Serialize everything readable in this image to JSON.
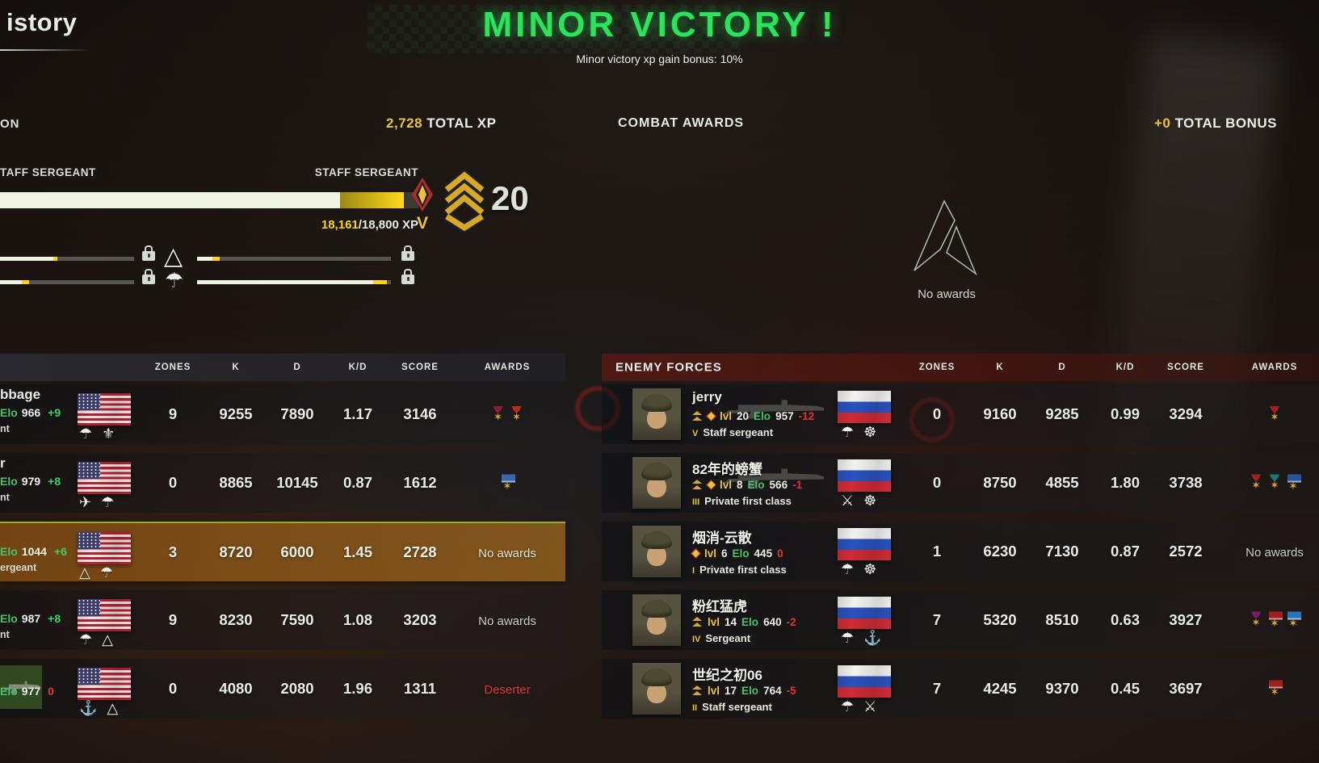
{
  "header": {
    "history_title_fragment": "istory",
    "victory_title": "MINOR VICTORY !",
    "victory_subtitle": "Minor victory xp gain bonus: 10%",
    "victory_color": "#2ce35c"
  },
  "sections": {
    "progression_label_fragment": "ON",
    "total_xp_value": "2,728",
    "total_xp_label": " TOTAL XP",
    "combat_awards_title": "COMBAT AWARDS",
    "total_bonus_value": "+0",
    "total_bonus_label": " TOTAL BONUS"
  },
  "progression": {
    "current_rank_fragment": "TAFF SERGEANT",
    "next_rank": "STAFF SERGEANT",
    "xp_current": "18,161",
    "xp_remaining": "/18,800 XP",
    "level": "20",
    "prestige_numeral": "V",
    "bar_base_pct": 81.3,
    "bar_gain_pct": 15.3
  },
  "unlocks": {
    "badge1": "△",
    "badge2": "☂",
    "row1": {
      "left_fill": 40,
      "left_gain": 2.5,
      "right_fill": 8,
      "right_gain": 3.5
    },
    "row2": {
      "left_fill": 16.5,
      "left_gain": 5,
      "right_fill": 91,
      "right_gain": 7
    }
  },
  "combat_awards": {
    "empty_label": "No awards"
  },
  "scoreboard": {
    "columns": [
      "ZONES",
      "K",
      "D",
      "K/D",
      "SCORE",
      "AWARDS"
    ],
    "enemy_title": "ENEMY FORCES",
    "lvl_label": "lvl",
    "elo_label": "Elo",
    "medal_glyph": "✶",
    "friendly_rows": [
      {
        "name_fragment": "bbage",
        "elo": "966",
        "delta": "+9",
        "delta_color": "#3ad166",
        "rank_fragment": "nt",
        "zones": "9",
        "k": "9255",
        "d": "7890",
        "kd": "1.17",
        "score": "3146",
        "medals": [
          {
            "c": "#8c1a3a"
          },
          {
            "c": "#b03020"
          }
        ],
        "badges": [
          "☂",
          "⚜"
        ]
      },
      {
        "name_fragment": "r",
        "elo": "979",
        "delta": "+8",
        "delta_color": "#3ad166",
        "rank_fragment": "nt",
        "zones": "0",
        "k": "8865",
        "d": "10145",
        "kd": "0.87",
        "score": "1612",
        "medals": [
          {
            "c": "#3a66b0",
            "t": "bar"
          }
        ],
        "badges": [
          "✈",
          "☂"
        ]
      },
      {
        "name_fragment": "",
        "elo": "1044",
        "delta": "+6",
        "delta_color": "#3ad166",
        "rank_fragment": "ergeant",
        "zones": "3",
        "k": "8720",
        "d": "6000",
        "kd": "1.45",
        "score": "2728",
        "awards_text": "No awards",
        "awards_color": "#e6e3d8",
        "badges": [
          "△",
          "☂"
        ]
      },
      {
        "name_fragment": "",
        "elo": "987",
        "delta": "+8",
        "delta_color": "#3ad166",
        "rank_fragment": "nt",
        "zones": "9",
        "k": "8230",
        "d": "7590",
        "kd": "1.08",
        "score": "3203",
        "awards_text": "No awards",
        "awards_color": "#c9cdc4",
        "badges": [
          "☂",
          "△"
        ]
      },
      {
        "name_fragment": "",
        "elo": "977",
        "delta": "0",
        "delta_color": "#e03434",
        "rank_fragment": "",
        "zones": "0",
        "k": "4080",
        "d": "2080",
        "kd": "1.96",
        "score": "1311",
        "awards_text": "Deserter",
        "awards_color": "#e03434",
        "badges": [
          "⚓",
          "△"
        ]
      }
    ],
    "enemy_rows": [
      {
        "name": "jerry",
        "lvl": "20",
        "elo": "957",
        "delta": "-12",
        "delta_color": "#e03434",
        "rank_numeral": "V",
        "rank_name": "Staff sergeant",
        "zones": "0",
        "k": "9160",
        "d": "9285",
        "kd": "0.99",
        "score": "3294",
        "medals": [
          {
            "c": "#a02020"
          }
        ],
        "badges": [
          "☂",
          "☸"
        ]
      },
      {
        "name": "82年的螃蟹",
        "lvl": "8",
        "elo": "566",
        "delta": "-1",
        "delta_color": "#e03434",
        "rank_numeral": "III",
        "rank_name": "Private first class",
        "zones": "0",
        "k": "8750",
        "d": "4855",
        "kd": "1.80",
        "score": "3738",
        "medals": [
          {
            "c": "#a02020"
          },
          {
            "c": "#1a7a70"
          },
          {
            "c": "#26549a",
            "t": "bar"
          }
        ],
        "badges": [
          "⚔",
          "☸"
        ]
      },
      {
        "name": "烟消-云散",
        "lvl": "6",
        "elo": "445",
        "delta": "0",
        "delta_color": "#e03434",
        "rank_numeral": "I",
        "rank_name": "Private first class",
        "zones": "1",
        "k": "6230",
        "d": "7130",
        "kd": "0.87",
        "score": "2572",
        "awards_text": "No awards",
        "awards_color": "#c9cdc4",
        "badges": [
          "☂",
          "☸"
        ]
      },
      {
        "name": "粉红猛虎",
        "lvl": "14",
        "elo": "640",
        "delta": "-2",
        "delta_color": "#e03434",
        "rank_numeral": "IV",
        "rank_name": "Sergeant",
        "zones": "7",
        "k": "5320",
        "d": "8510",
        "kd": "0.63",
        "score": "3927",
        "medals": [
          {
            "c": "#7a1a6a"
          },
          {
            "c": "#a02020",
            "t": "bar"
          },
          {
            "c": "#2874b8",
            "t": "bar"
          }
        ],
        "badges": [
          "☂",
          "⚓"
        ]
      },
      {
        "name": "世纪之初06",
        "lvl": "17",
        "elo": "764",
        "delta": "-5",
        "delta_color": "#e03434",
        "rank_numeral": "II",
        "rank_name": "Staff sergeant",
        "zones": "7",
        "k": "4245",
        "d": "9370",
        "kd": "0.45",
        "score": "3697",
        "medals": [
          {
            "c": "#a02020",
            "t": "bar"
          }
        ],
        "badges": [
          "☂",
          "⚔"
        ]
      }
    ]
  }
}
